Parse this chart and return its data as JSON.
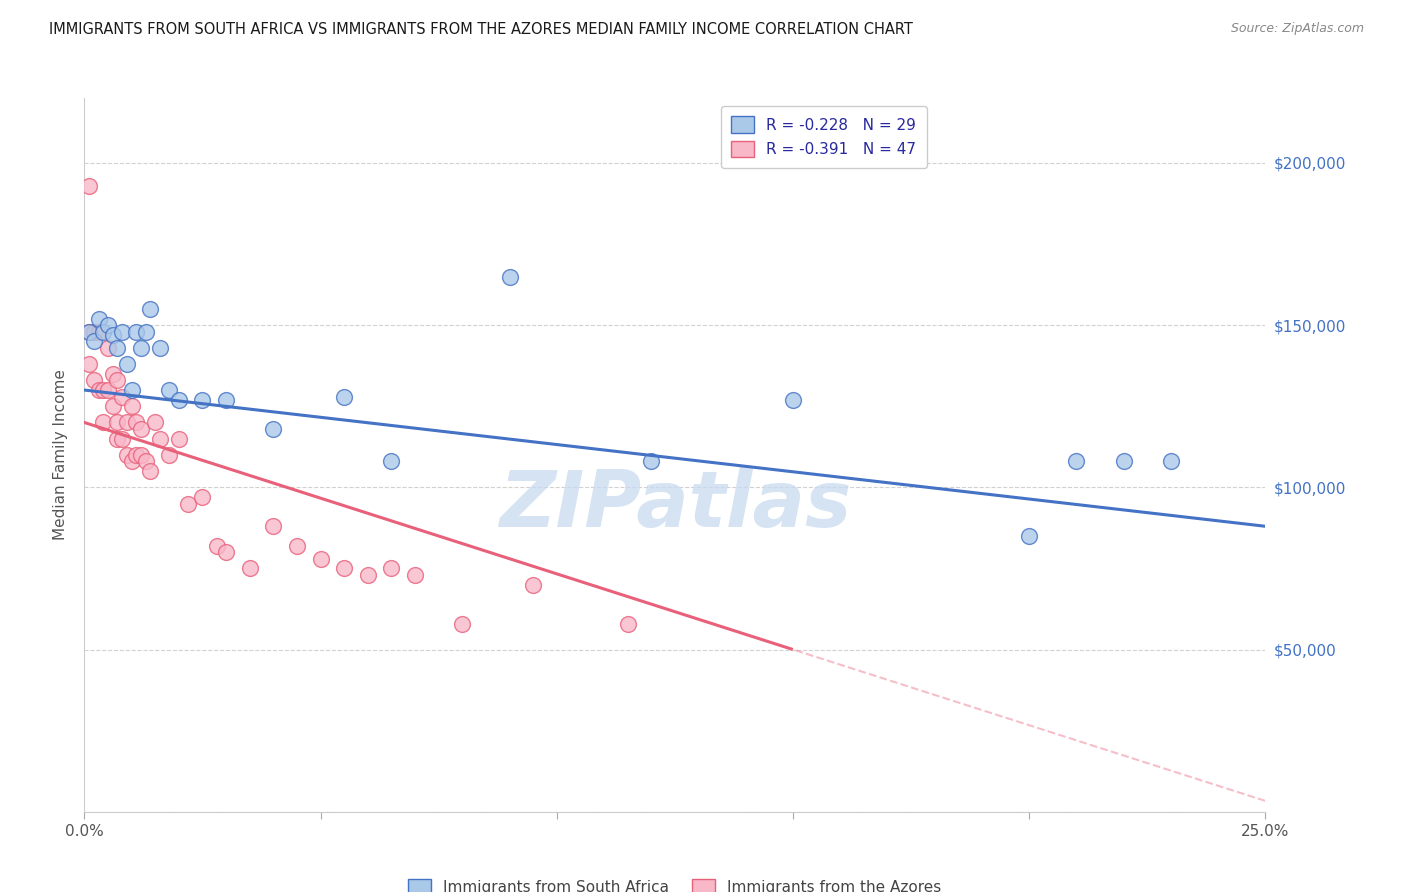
{
  "title": "IMMIGRANTS FROM SOUTH AFRICA VS IMMIGRANTS FROM THE AZORES MEDIAN FAMILY INCOME CORRELATION CHART",
  "source": "Source: ZipAtlas.com",
  "ylabel": "Median Family Income",
  "xlim": [
    0.0,
    0.25
  ],
  "ylim": [
    0,
    220000
  ],
  "yticks": [
    0,
    50000,
    100000,
    150000,
    200000
  ],
  "ytick_labels": [
    "",
    "$50,000",
    "$100,000",
    "$150,000",
    "$200,000"
  ],
  "xticks": [
    0.0,
    0.05,
    0.1,
    0.15,
    0.2,
    0.25
  ],
  "xtick_labels": [
    "0.0%",
    "",
    "",
    "",
    "",
    "25.0%"
  ],
  "legend_label1": "Immigrants from South Africa",
  "legend_label2": "Immigrants from the Azores",
  "r1": -0.228,
  "n1": 29,
  "r2": -0.391,
  "n2": 47,
  "color1": "#aac8e8",
  "color2": "#f8b8c8",
  "line_color1": "#4472c4",
  "line_color2": "#e8607a",
  "tick_color_right": "#4472c4",
  "watermark": "ZIPatlas",
  "watermark_color": "#c8daf0",
  "scatter1_x": [
    0.001,
    0.002,
    0.003,
    0.004,
    0.005,
    0.006,
    0.007,
    0.008,
    0.009,
    0.01,
    0.011,
    0.012,
    0.013,
    0.014,
    0.016,
    0.018,
    0.02,
    0.025,
    0.03,
    0.04,
    0.055,
    0.065,
    0.09,
    0.12,
    0.15,
    0.2,
    0.21,
    0.22,
    0.23
  ],
  "scatter1_y": [
    148000,
    145000,
    152000,
    148000,
    150000,
    147000,
    143000,
    148000,
    138000,
    130000,
    148000,
    143000,
    148000,
    155000,
    143000,
    130000,
    127000,
    127000,
    127000,
    118000,
    128000,
    108000,
    165000,
    108000,
    127000,
    85000,
    108000,
    108000,
    108000
  ],
  "scatter2_x": [
    0.001,
    0.001,
    0.001,
    0.002,
    0.002,
    0.003,
    0.003,
    0.004,
    0.004,
    0.005,
    0.005,
    0.006,
    0.006,
    0.007,
    0.007,
    0.007,
    0.008,
    0.008,
    0.009,
    0.009,
    0.01,
    0.01,
    0.011,
    0.011,
    0.012,
    0.012,
    0.013,
    0.014,
    0.015,
    0.016,
    0.018,
    0.02,
    0.022,
    0.025,
    0.028,
    0.03,
    0.035,
    0.04,
    0.045,
    0.05,
    0.055,
    0.06,
    0.065,
    0.07,
    0.08,
    0.095,
    0.115
  ],
  "scatter2_y": [
    193000,
    148000,
    138000,
    148000,
    133000,
    148000,
    130000,
    130000,
    120000,
    143000,
    130000,
    135000,
    125000,
    133000,
    120000,
    115000,
    128000,
    115000,
    120000,
    110000,
    125000,
    108000,
    120000,
    110000,
    118000,
    110000,
    108000,
    105000,
    120000,
    115000,
    110000,
    115000,
    95000,
    97000,
    82000,
    80000,
    75000,
    88000,
    82000,
    78000,
    75000,
    73000,
    75000,
    73000,
    58000,
    70000,
    58000
  ]
}
